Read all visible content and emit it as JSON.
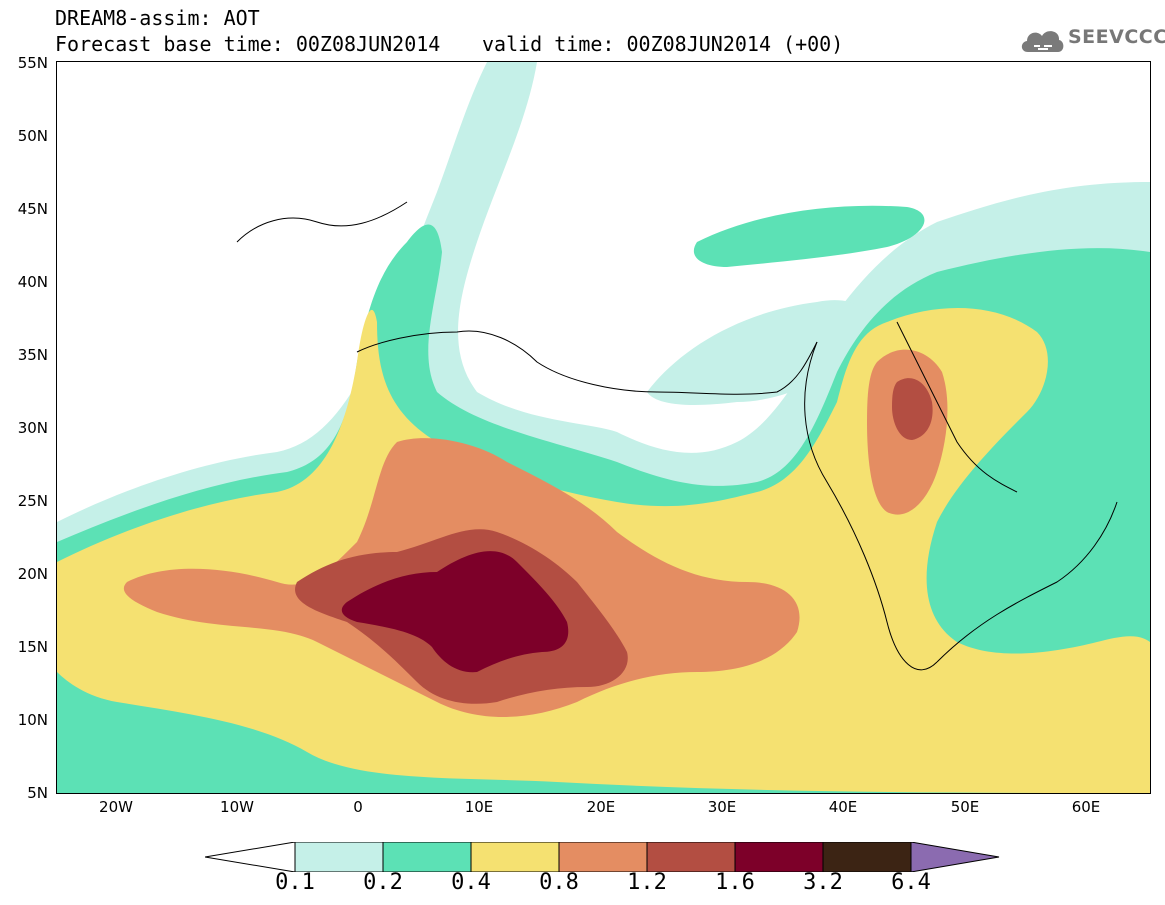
{
  "header": {
    "title": "DREAM8-assim: AOT",
    "base_time": "Forecast base time: 00Z08JUN2014",
    "valid_time": "valid time: 00Z08JUN2014 (+00)"
  },
  "logo": {
    "text": "SEEVCCC",
    "icon": "cloud-icon"
  },
  "map": {
    "latitude_labels": [
      "55N",
      "50N",
      "45N",
      "40N",
      "35N",
      "30N",
      "25N",
      "20N",
      "15N",
      "10N",
      "5N"
    ],
    "longitude_labels": [
      "20W",
      "10W",
      "0",
      "10E",
      "20E",
      "30E",
      "40E",
      "50E",
      "60E"
    ]
  },
  "legend": {
    "levels": [
      "0.1",
      "0.2",
      "0.4",
      "0.8",
      "1.2",
      "1.6",
      "3.2",
      "6.4"
    ],
    "colors": [
      "#ffffff",
      "#c5f0e8",
      "#5ce1b5",
      "#f5e171",
      "#e48d62",
      "#b34e42",
      "#7d0029",
      "#3c2414",
      "#8b6bb0"
    ]
  }
}
